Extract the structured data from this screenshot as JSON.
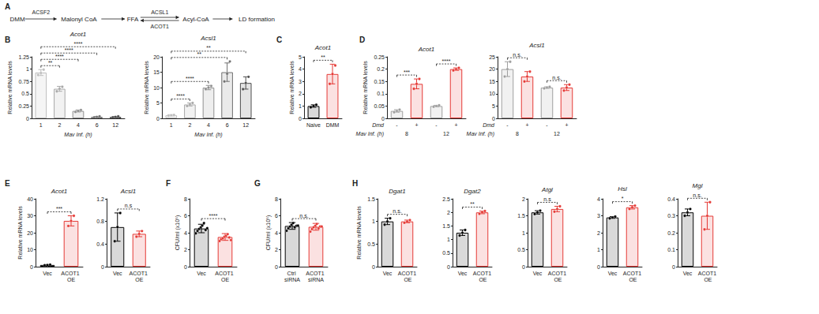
{
  "diagram": {
    "panel": "A",
    "nodes": [
      "DMM",
      "Malonyl CoA",
      "FFA",
      "Acyl-CoA",
      "LD formation"
    ],
    "arrows": [
      {
        "from": 0,
        "to": 1,
        "label": "ACSF2"
      },
      {
        "from": 1,
        "to": 2
      },
      {
        "from": 2,
        "to": 3,
        "label": "ACSL1",
        "reverse_label": "ACOT1"
      },
      {
        "from": 3,
        "to": 4
      }
    ]
  },
  "chart_data": [
    {
      "panel": "B",
      "type": "bar",
      "title": "Acot1",
      "x_label": "Mav Inf. (h)",
      "y_label": "Relative mRNA levels",
      "categories": [
        "1",
        "2",
        "4",
        "6",
        "12"
      ],
      "values": [
        0.93,
        0.6,
        0.15,
        0.03,
        0.03
      ],
      "errors": [
        0.06,
        0.05,
        0.02,
        0.01,
        0.01
      ],
      "points": [
        [
          0.88,
          0.92,
          0.99
        ],
        [
          0.55,
          0.6,
          0.64
        ],
        [
          0.13,
          0.15,
          0.17
        ],
        [
          0.02,
          0.03,
          0.04
        ],
        [
          0.02,
          0.03,
          0.04
        ]
      ],
      "colors": [
        "#bdbdbd",
        "#a8a8a8",
        "#8f8f8f",
        "#707070",
        "#4d4d4d"
      ],
      "ylim": [
        0,
        1.25
      ],
      "yticks": [
        0,
        0.25,
        0.5,
        0.75,
        1,
        1.25
      ],
      "significance": [
        {
          "from": 0,
          "to": 1,
          "label": "**"
        },
        {
          "from": 0,
          "to": 2,
          "label": "****"
        },
        {
          "from": 0,
          "to": 3,
          "label": "****"
        },
        {
          "from": 0,
          "to": 4,
          "label": "****"
        }
      ]
    },
    {
      "type": "bar",
      "title": "Acsl1",
      "x_label": "Mav Inf. (h)",
      "y_label": "Relative mRNA levels",
      "categories": [
        "1",
        "2",
        "4",
        "6",
        "12"
      ],
      "values": [
        1,
        4.5,
        10,
        15,
        11.5
      ],
      "errors": [
        0.2,
        0.5,
        0.7,
        3,
        2
      ],
      "points": [
        [
          0.9,
          1,
          1.1
        ],
        [
          4,
          4.5,
          5
        ],
        [
          9.5,
          10,
          10.5
        ],
        [
          12,
          14.5,
          18.5
        ],
        [
          9.5,
          11.5,
          13.5
        ]
      ],
      "colors": [
        "#bdbdbd",
        "#a8a8a8",
        "#8f8f8f",
        "#707070",
        "#4d4d4d"
      ],
      "ylim": [
        0,
        20
      ],
      "yticks": [
        0,
        5,
        10,
        15,
        20
      ],
      "significance": [
        {
          "from": 0,
          "to": 1,
          "label": "****"
        },
        {
          "from": 0,
          "to": 2,
          "label": "****"
        },
        {
          "from": 0,
          "to": 3,
          "label": "**"
        },
        {
          "from": 0,
          "to": 4,
          "label": "**"
        }
      ]
    },
    {
      "panel": "C",
      "type": "bar",
      "title": "Acot1",
      "y_label": "Relative mRNA levels",
      "categories": [
        "Naive",
        "DMM"
      ],
      "values": [
        1,
        3.6
      ],
      "errors": [
        0.1,
        0.8
      ],
      "points": [
        [
          0.9,
          1,
          1.1
        ],
        [
          2.8,
          3.6,
          4.3
        ]
      ],
      "colors": [
        "#000000",
        "#e53935"
      ],
      "ylim": [
        0,
        5
      ],
      "yticks": [
        0,
        1,
        2,
        3,
        4,
        5
      ],
      "significance": [
        {
          "from": 0,
          "to": 1,
          "label": "**"
        }
      ]
    },
    {
      "panel": "D",
      "type": "bar",
      "title": "Acot1",
      "y_label": "Relative mRNA levels",
      "categories": [
        "-",
        "+",
        "-",
        "+"
      ],
      "group_labels": [
        "8",
        "12"
      ],
      "row_labels": [
        "Dmd",
        "Mav Inf. (h)"
      ],
      "values": [
        0.03,
        0.14,
        0.05,
        0.2
      ],
      "errors": [
        0.005,
        0.02,
        0.003,
        0.005
      ],
      "points": [
        [
          0.025,
          0.03,
          0.035
        ],
        [
          0.12,
          0.14,
          0.16
        ],
        [
          0.047,
          0.05,
          0.053
        ],
        [
          0.195,
          0.2,
          0.205
        ]
      ],
      "colors": [
        "#9e9e9e",
        "#e53935",
        "#9e9e9e",
        "#e53935"
      ],
      "ylim": [
        0,
        0.25
      ],
      "yticks": [
        0,
        0.05,
        0.1,
        0.15,
        0.2,
        0.25
      ],
      "significance": [
        {
          "from": 0,
          "to": 1,
          "label": "***"
        },
        {
          "from": 2,
          "to": 3,
          "label": "****"
        }
      ]
    },
    {
      "type": "bar",
      "title": "Acsl1",
      "categories": [
        "-",
        "+",
        "-",
        "+"
      ],
      "group_labels": [
        "8",
        "12"
      ],
      "row_labels": [
        "Dmd",
        "Mav Inf. (h)"
      ],
      "values": [
        20,
        17,
        12.5,
        12.5
      ],
      "errors": [
        3,
        2,
        0.3,
        1.2
      ],
      "points": [
        [
          17,
          20,
          23
        ],
        [
          15,
          17,
          19
        ],
        [
          12.2,
          12.5,
          12.8
        ],
        [
          11.3,
          12.5,
          13.7
        ]
      ],
      "colors": [
        "#9e9e9e",
        "#e53935",
        "#9e9e9e",
        "#e53935"
      ],
      "ylim": [
        0,
        25
      ],
      "yticks": [
        0,
        5,
        10,
        15,
        20,
        25
      ],
      "significance": [
        {
          "from": 0,
          "to": 1,
          "label": "n.s."
        },
        {
          "from": 2,
          "to": 3,
          "label": "n.s."
        }
      ]
    },
    {
      "panel": "E",
      "type": "bar",
      "title": "Acot1",
      "y_label": "Relative mRNA levels",
      "categories": [
        "Vec",
        "ACOT1 OE"
      ],
      "values": [
        1,
        27
      ],
      "errors": [
        0.2,
        3
      ],
      "points": [
        [
          0.8,
          1,
          1.2
        ],
        [
          24,
          27,
          30
        ]
      ],
      "colors": [
        "#000000",
        "#e53935"
      ],
      "ylim": [
        0,
        40
      ],
      "yticks": [
        0,
        10,
        20,
        30,
        40
      ],
      "significance": [
        {
          "from": 0,
          "to": 1,
          "label": "***"
        }
      ]
    },
    {
      "type": "bar",
      "title": "Acsl1",
      "categories": [
        "Vec",
        "ACOT1 OE"
      ],
      "values": [
        0.7,
        0.58
      ],
      "errors": [
        0.25,
        0.05
      ],
      "points": [
        [
          0.45,
          0.7,
          0.95
        ],
        [
          0.53,
          0.58,
          0.63
        ]
      ],
      "colors": [
        "#000000",
        "#e53935"
      ],
      "ylim": [
        0,
        1.2
      ],
      "yticks": [
        0,
        0.4,
        0.8,
        1.2
      ],
      "significance": [
        {
          "from": 0,
          "to": 1,
          "label": "n.s"
        }
      ]
    },
    {
      "panel": "F",
      "type": "bar",
      "y_label": "CFU/ml (x10⁵)",
      "categories": [
        "Vec",
        "ACOT1 OE"
      ],
      "values": [
        4.5,
        3.5
      ],
      "errors": [
        0.5,
        0.4
      ],
      "points": [
        [
          4.0,
          4.3,
          4.5,
          4.7,
          4.9,
          5.2,
          4.4,
          4.6
        ],
        [
          3.1,
          3.3,
          3.4,
          3.6,
          3.7,
          3.9,
          3.5,
          3.2
        ]
      ],
      "colors": [
        "#000000",
        "#e53935"
      ],
      "ylim": [
        0,
        8
      ],
      "yticks": [
        0,
        2,
        4,
        6,
        8
      ],
      "significance": [
        {
          "from": 0,
          "to": 1,
          "label": "****"
        }
      ]
    },
    {
      "panel": "G",
      "type": "bar",
      "y_label": "CFU/ml (x10⁵)",
      "categories": [
        "Ctrl siRNA",
        "ACOT1 siRNA"
      ],
      "values": [
        4.8,
        4.7
      ],
      "errors": [
        0.4,
        0.4
      ],
      "points": [
        [
          4.3,
          4.6,
          4.8,
          5.0,
          5.2,
          4.7,
          4.9,
          4.9
        ],
        [
          4.2,
          4.5,
          4.7,
          4.9,
          5.1,
          4.6,
          4.8,
          4.8
        ]
      ],
      "colors": [
        "#000000",
        "#e53935"
      ],
      "ylim": [
        0,
        8
      ],
      "yticks": [
        0,
        2,
        4,
        6,
        8
      ],
      "significance": [
        {
          "from": 0,
          "to": 1,
          "label": "n.s."
        }
      ]
    },
    {
      "panel": "H",
      "type": "bar",
      "title": "Dgat1",
      "y_label": "Relative mRNA levels",
      "categories": [
        "Vec",
        "ACOT1 OE"
      ],
      "values": [
        1,
        1
      ],
      "errors": [
        0.07,
        0.03
      ],
      "points": [
        [
          0.93,
          1.0,
          1.07
        ],
        [
          0.97,
          1.0,
          1.03
        ]
      ],
      "colors": [
        "#000000",
        "#e53935"
      ],
      "ylim": [
        0,
        1.5
      ],
      "yticks": [
        0,
        0.5,
        1,
        1.5
      ],
      "significance": [
        {
          "from": 0,
          "to": 1,
          "label": "n.s."
        }
      ]
    },
    {
      "type": "bar",
      "title": "Dgat2",
      "categories": [
        "Vec",
        "ACOT1 OE"
      ],
      "values": [
        1.25,
        2.0
      ],
      "errors": [
        0.1,
        0.05
      ],
      "points": [
        [
          1.15,
          1.25,
          1.35
        ],
        [
          1.95,
          2.0,
          2.05
        ]
      ],
      "colors": [
        "#000000",
        "#e53935"
      ],
      "ylim": [
        0,
        2.5
      ],
      "yticks": [
        0,
        0.5,
        1,
        1.5,
        2,
        2.5
      ],
      "significance": [
        {
          "from": 0,
          "to": 1,
          "label": "**"
        }
      ]
    },
    {
      "type": "bar",
      "title": "Atgl",
      "categories": [
        "Vec",
        "ACOT1 OE"
      ],
      "values": [
        1.6,
        1.7
      ],
      "errors": [
        0.05,
        0.08
      ],
      "points": [
        [
          1.55,
          1.6,
          1.65
        ],
        [
          1.62,
          1.7,
          1.78
        ]
      ],
      "colors": [
        "#000000",
        "#e53935"
      ],
      "ylim": [
        0,
        2
      ],
      "yticks": [
        0,
        0.5,
        1,
        1.5,
        2
      ],
      "significance": [
        {
          "from": 0,
          "to": 1,
          "label": "n.s"
        }
      ]
    },
    {
      "type": "bar",
      "title": "Hsl",
      "categories": [
        "Vec",
        "ACOT1 OE"
      ],
      "values": [
        2.9,
        3.5
      ],
      "errors": [
        0.05,
        0.1
      ],
      "points": [
        [
          2.85,
          2.9,
          2.95
        ],
        [
          3.4,
          3.5,
          3.6
        ]
      ],
      "colors": [
        "#000000",
        "#e53935"
      ],
      "ylim": [
        0,
        4
      ],
      "yticks": [
        0,
        1,
        2,
        3,
        4
      ],
      "significance": [
        {
          "from": 0,
          "to": 1,
          "label": "*"
        }
      ]
    },
    {
      "type": "bar",
      "title": "Mgl",
      "categories": [
        "Vec",
        "ACOT1 OE"
      ],
      "values": [
        0.32,
        0.3
      ],
      "errors": [
        0.02,
        0.08
      ],
      "points": [
        [
          0.3,
          0.32,
          0.34
        ],
        [
          0.22,
          0.3,
          0.38
        ]
      ],
      "colors": [
        "#000000",
        "#e53935"
      ],
      "ylim": [
        0,
        0.4
      ],
      "yticks": [
        0,
        0.1,
        0.2,
        0.3,
        0.4
      ],
      "significance": [
        {
          "from": 0,
          "to": 1,
          "label": "n.s."
        }
      ]
    }
  ]
}
